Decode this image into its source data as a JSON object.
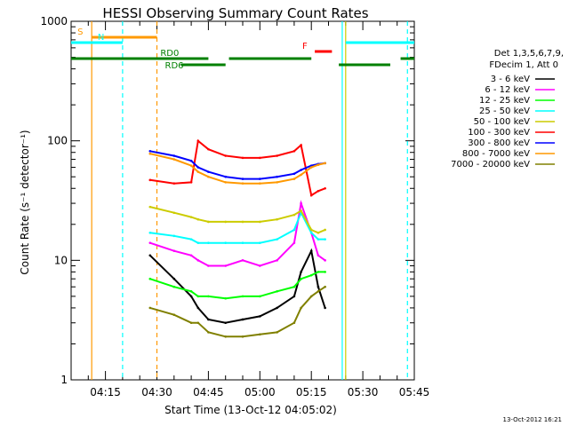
{
  "chart_data": {
    "type": "line",
    "title": "HESSI Observing Summary Count Rates",
    "xlabel": "Start Time (13-Oct-12 04:05:02)",
    "ylabel": "Count Rate (s⁻¹ detector⁻¹)",
    "yscale": "log",
    "ylim": [
      1,
      1000
    ],
    "xlim_minutes": [
      0,
      100
    ],
    "x_tick_labels": [
      {
        "label": "04:15",
        "minute": 10
      },
      {
        "label": "04:30",
        "minute": 25
      },
      {
        "label": "04:45",
        "minute": 40
      },
      {
        "label": "05:00",
        "minute": 55
      },
      {
        "label": "05:15",
        "minute": 70
      },
      {
        "label": "05:30",
        "minute": 85
      },
      {
        "label": "05:45",
        "minute": 100
      }
    ],
    "y_tick_labels": [
      {
        "label": "1",
        "value": 1
      },
      {
        "label": "10",
        "value": 10
      },
      {
        "label": "100",
        "value": 100
      },
      {
        "label": "1000",
        "value": 1000
      }
    ],
    "legend_header": [
      "Det 1,3,5,6,7,9,",
      "FDecim 1, Att 0"
    ],
    "legend_position": "right",
    "series": [
      {
        "name": "3 - 6 keV",
        "color": "#000000",
        "x": [
          23,
          30,
          35,
          37,
          40,
          45,
          50,
          55,
          60,
          65,
          67,
          70,
          72,
          74
        ],
        "y": [
          11,
          7,
          5,
          4,
          3.2,
          3,
          3.2,
          3.4,
          4,
          5,
          8,
          12,
          6,
          4
        ]
      },
      {
        "name": "6 - 12 keV",
        "color": "#ff00ff",
        "x": [
          23,
          30,
          35,
          37,
          40,
          45,
          50,
          55,
          60,
          65,
          67,
          70,
          72,
          74
        ],
        "y": [
          14,
          12,
          11,
          10,
          9,
          9,
          10,
          9,
          10,
          14,
          30,
          17,
          11,
          10
        ]
      },
      {
        "name": "12 - 25 keV",
        "color": "#00ff00",
        "x": [
          23,
          30,
          35,
          37,
          40,
          45,
          50,
          55,
          60,
          65,
          67,
          70,
          72,
          74
        ],
        "y": [
          7,
          6,
          5.5,
          5,
          5,
          4.8,
          5,
          5,
          5.5,
          6,
          7,
          7.5,
          8,
          8
        ]
      },
      {
        "name": "25 - 50 keV",
        "color": "#00ffff",
        "x": [
          23,
          30,
          35,
          37,
          40,
          45,
          50,
          55,
          60,
          65,
          67,
          70,
          72,
          74
        ],
        "y": [
          17,
          16,
          15,
          14,
          14,
          14,
          14,
          14,
          15,
          18,
          25,
          17,
          15,
          15
        ]
      },
      {
        "name": "50 - 100 keV",
        "color": "#cccc00",
        "x": [
          23,
          30,
          35,
          37,
          40,
          45,
          50,
          55,
          60,
          65,
          67,
          70,
          72,
          74
        ],
        "y": [
          28,
          25,
          23,
          22,
          21,
          21,
          21,
          21,
          22,
          24,
          26,
          18,
          17,
          18
        ]
      },
      {
        "name": "100 - 300 keV",
        "color": "#ff0000",
        "x": [
          23,
          30,
          35,
          37,
          40,
          45,
          50,
          55,
          60,
          65,
          67,
          70,
          72,
          74
        ],
        "y": [
          47,
          44,
          45,
          100,
          85,
          75,
          72,
          72,
          75,
          82,
          92,
          35,
          38,
          40
        ]
      },
      {
        "name": "300 - 800 keV",
        "color": "#0000ff",
        "x": [
          23,
          30,
          35,
          37,
          40,
          45,
          50,
          55,
          60,
          65,
          67,
          70,
          72,
          74
        ],
        "y": [
          82,
          75,
          68,
          60,
          55,
          50,
          48,
          48,
          50,
          53,
          57,
          62,
          64,
          65
        ]
      },
      {
        "name": "800 - 7000 keV",
        "color": "#ff9900",
        "x": [
          23,
          30,
          35,
          37,
          40,
          45,
          50,
          55,
          60,
          65,
          67,
          70,
          72,
          74
        ],
        "y": [
          78,
          70,
          62,
          55,
          50,
          45,
          44,
          44,
          45,
          48,
          52,
          60,
          63,
          65
        ]
      },
      {
        "name": "7000 - 20000 keV",
        "color": "#808000",
        "x": [
          23,
          30,
          35,
          37,
          40,
          45,
          50,
          55,
          60,
          65,
          67,
          70,
          72,
          74
        ],
        "y": [
          4,
          3.5,
          3,
          3,
          2.5,
          2.3,
          2.3,
          2.4,
          2.5,
          3,
          4,
          5,
          5.5,
          6
        ]
      }
    ],
    "flag_bars": [
      {
        "label": "S",
        "color": "#ff9900",
        "x": [
          6,
          25
        ]
      },
      {
        "label": "N",
        "color": "#00ffff",
        "x": [
          0,
          15
        ]
      },
      {
        "label": "N",
        "color": "#00ffff",
        "x": [
          80,
          100
        ]
      },
      {
        "label": "F",
        "color": "#ff0000",
        "x": [
          71,
          76
        ]
      },
      {
        "label": "RD0",
        "color": "#008000",
        "x": [
          0,
          40
        ]
      },
      {
        "label": "RD0",
        "color": "#008000",
        "x": [
          46,
          70
        ]
      },
      {
        "label": "RD0",
        "color": "#008000",
        "x": [
          96,
          100
        ]
      },
      {
        "label": "RD6",
        "color": "#008000",
        "x": [
          32,
          45
        ]
      },
      {
        "label": "RD6",
        "color": "#008000",
        "x": [
          78,
          93
        ]
      }
    ],
    "vertical_lines": [
      {
        "minute": 6,
        "color": "#ff9900",
        "style": "solid"
      },
      {
        "minute": 15,
        "color": "#00ffff",
        "style": "dashed"
      },
      {
        "minute": 25,
        "color": "#ff9900",
        "style": "dashed"
      },
      {
        "minute": 79,
        "color": "#00ffff",
        "style": "solid"
      },
      {
        "minute": 80,
        "color": "#cccc00",
        "style": "solid"
      },
      {
        "minute": 98,
        "color": "#00ffff",
        "style": "dashed"
      }
    ]
  },
  "footer": {
    "timestamp": "13-Oct-2012 16:21"
  }
}
